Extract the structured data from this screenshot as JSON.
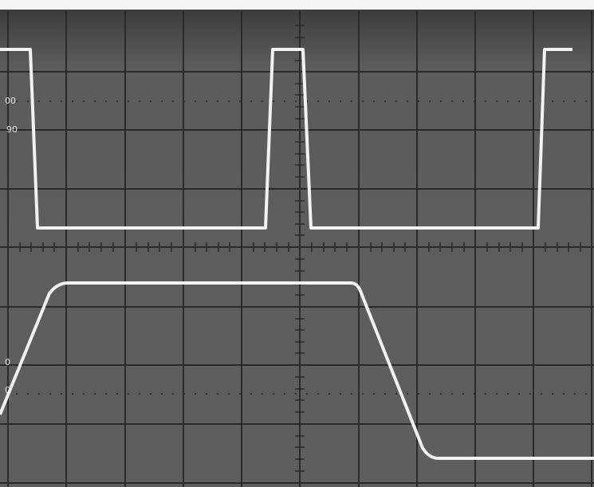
{
  "graticule_labels": [
    "00",
    "90",
    "0",
    "0"
  ]
}
